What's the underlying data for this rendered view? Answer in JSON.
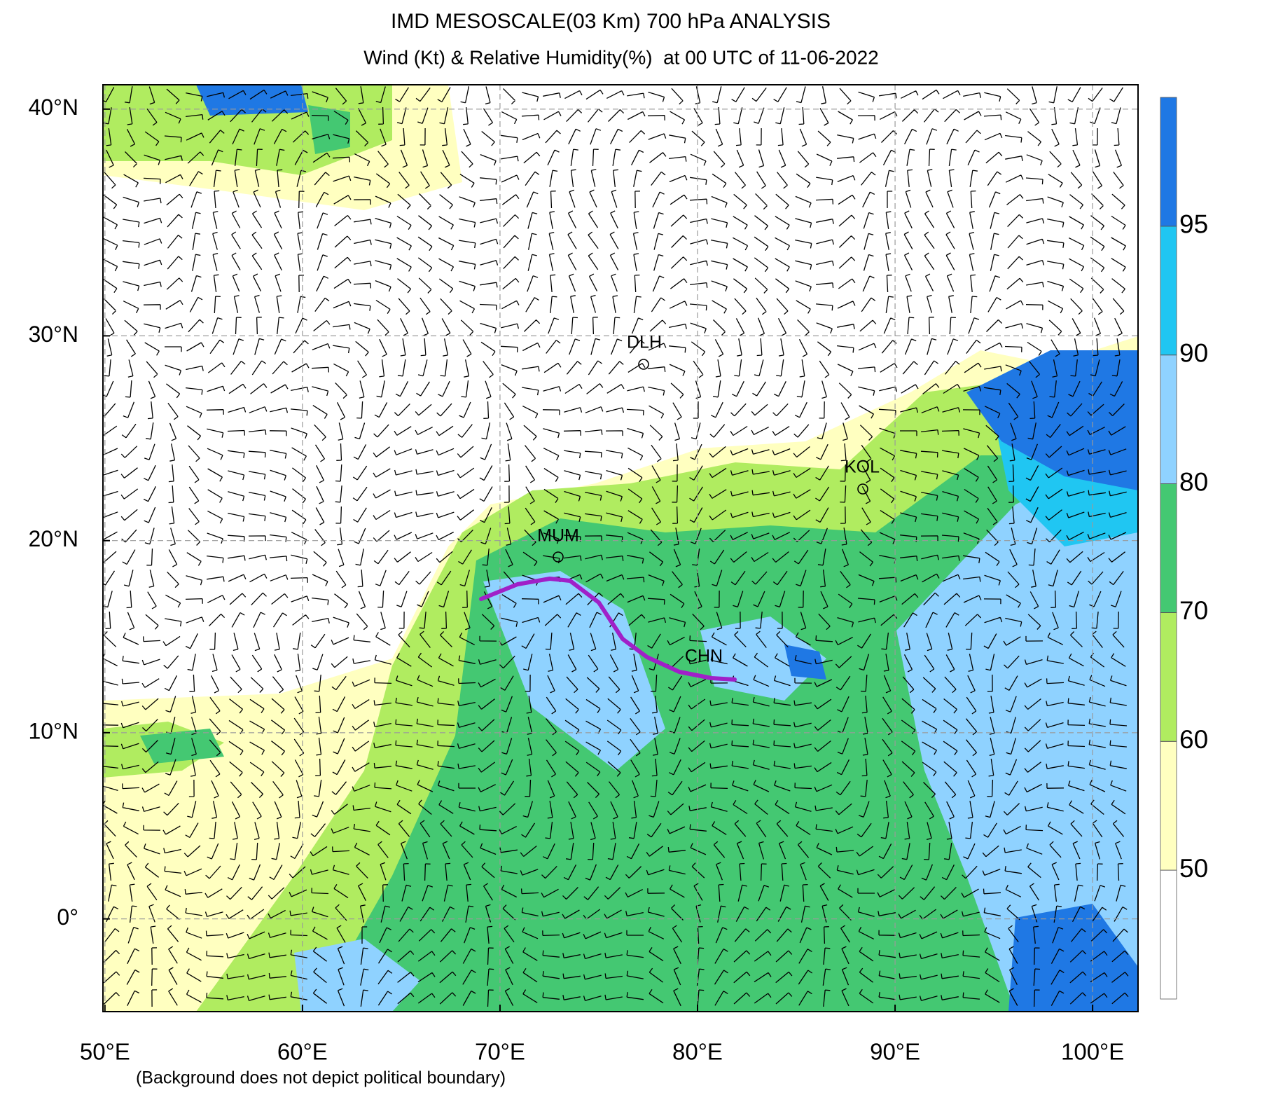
{
  "header": {
    "title": "IMD MESOSCALE(03 Km) 700 hPa ANALYSIS",
    "subtitle": "Wind (Kt) & Relative Humidity(%)  at 00 UTC of 11-06-2022"
  },
  "map": {
    "projection": "mercator",
    "xlim": [
      49.9,
      102.3
    ],
    "ylim": [
      -5,
      41
    ],
    "xticks": [
      {
        "value": 50,
        "label": "50°E"
      },
      {
        "value": 60,
        "label": "60°E"
      },
      {
        "value": 70,
        "label": "70°E"
      },
      {
        "value": 80,
        "label": "80°E"
      },
      {
        "value": 90,
        "label": "90°E"
      },
      {
        "value": 100,
        "label": "100°E"
      }
    ],
    "yticks": [
      {
        "value": 0,
        "label": "0°"
      },
      {
        "value": 10,
        "label": "10°N"
      },
      {
        "value": 20,
        "label": "20°N"
      },
      {
        "value": 30,
        "label": "30°N"
      },
      {
        "value": 40,
        "label": "40°N"
      }
    ],
    "cities": [
      "DLH",
      "MUM",
      "KOL",
      "CHN"
    ],
    "footnote": "(Background does not depict political boundary)"
  },
  "colorbar": {
    "ticks": [
      50,
      60,
      70,
      80,
      90,
      95
    ],
    "colors": [
      "#ffffff",
      "#ffffc0",
      "#b0ec60",
      "#44c872",
      "#8fd2ff",
      "#20c6f2",
      "#1f78e4"
    ]
  }
}
